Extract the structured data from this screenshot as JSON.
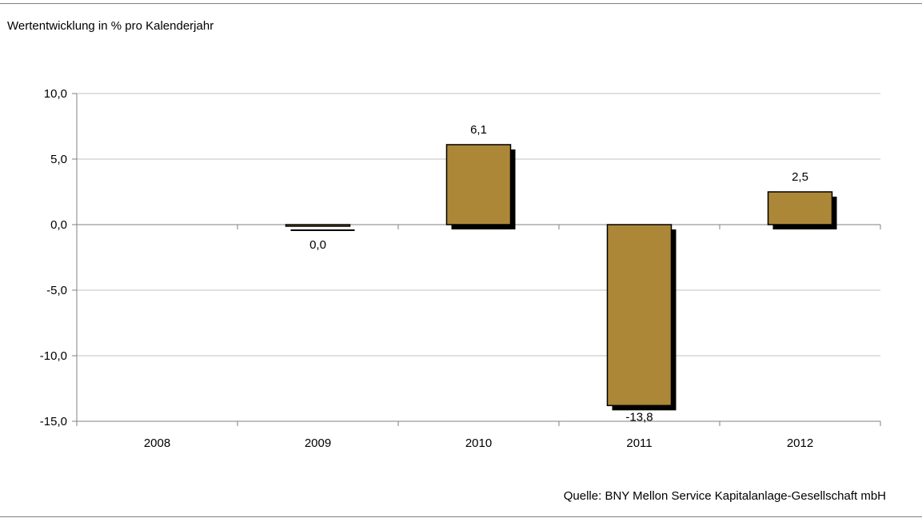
{
  "chart_data": {
    "type": "bar",
    "title": "Wertentwicklung in % pro Kalenderjahr",
    "source": "Quelle: BNY Mellon Service Kapitalanlage-Gesellschaft mbH",
    "categories": [
      "2008",
      "2009",
      "2010",
      "2011",
      "2012"
    ],
    "values": [
      null,
      0.0,
      6.1,
      -13.8,
      2.5
    ],
    "data_labels": [
      "",
      "0,0",
      "6,1",
      "-13,8",
      "2,5"
    ],
    "ylim": [
      -15,
      10
    ],
    "yticks": [
      10,
      5,
      0,
      -5,
      -10,
      -15
    ],
    "ytick_labels": [
      "10,0",
      "5,0",
      "0,0",
      "-5,0",
      "-10,0",
      "-15,0"
    ],
    "xlabel": "",
    "ylabel": "",
    "grid": true,
    "legend": "none",
    "colors": {
      "bar_fill": "#ac8738",
      "bar_shadow": "#000000",
      "grid": "#c0c0c0",
      "axis": "#808080"
    }
  }
}
